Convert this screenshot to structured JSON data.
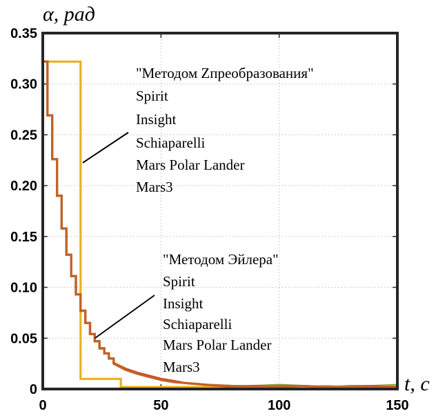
{
  "chart_data": {
    "type": "line",
    "ylabel": "α, рад",
    "xlabel": "t, c",
    "xlim": [
      0,
      150
    ],
    "ylim": [
      0,
      0.35
    ],
    "x_ticks": [
      "0",
      "50",
      "100",
      "150"
    ],
    "y_ticks": [
      "0",
      "0.05",
      "0.10",
      "0.15",
      "0.20",
      "0.25",
      "0.30",
      "0.35"
    ],
    "grid": true,
    "step": true,
    "annotations": [
      {
        "name": "z-group",
        "lines": [
          "\"Методом Zпреобразования\"",
          "Spirit",
          "Insight",
          "Schiaparelli",
          "Mars Polar Lander",
          "Mars3"
        ]
      },
      {
        "name": "euler-group",
        "lines": [
          "\"Методом Эйлера\"",
          "Spirit",
          "Insight",
          "Schiaparelli",
          "Mars Polar Lander",
          "Mars3"
        ]
      }
    ],
    "series": [
      {
        "color": "#e8b21e",
        "x": [
          0,
          16,
          16,
          33,
          33,
          150
        ],
        "y": [
          0.322,
          0.322,
          0.01,
          0.01,
          0.002,
          0.002
        ]
      },
      {
        "color": "#7fa23a",
        "x": [
          0,
          2,
          2,
          4,
          4,
          6,
          6,
          8,
          8,
          10,
          10,
          12,
          12,
          14,
          14,
          16,
          16,
          18,
          18,
          20,
          20,
          22,
          22,
          24,
          24,
          26,
          26,
          28,
          28,
          30,
          30,
          35,
          40,
          45,
          50,
          55,
          60,
          65,
          70,
          80,
          90,
          100,
          110,
          120,
          130,
          140,
          150
        ],
        "y": [
          0.322,
          0.322,
          0.269,
          0.269,
          0.226,
          0.226,
          0.19,
          0.19,
          0.158,
          0.158,
          0.132,
          0.132,
          0.111,
          0.111,
          0.093,
          0.093,
          0.077,
          0.077,
          0.065,
          0.065,
          0.054,
          0.054,
          0.047,
          0.047,
          0.04,
          0.04,
          0.035,
          0.035,
          0.03,
          0.03,
          0.025,
          0.019,
          0.015,
          0.012,
          0.009,
          0.007,
          0.006,
          0.005,
          0.004,
          0.003,
          0.003,
          0.004,
          0.003,
          0.002,
          0.003,
          0.003,
          0.004
        ]
      },
      {
        "color": "#c9b03a",
        "x": [
          0,
          2,
          2,
          4,
          4,
          6,
          6,
          8,
          8,
          10,
          10,
          12,
          12,
          14,
          14,
          16,
          16,
          18,
          18,
          20,
          20,
          22,
          22,
          24,
          24,
          26,
          26,
          28,
          28,
          30,
          30,
          35,
          40,
          45,
          50,
          55,
          60,
          65,
          70,
          80,
          90,
          100,
          110,
          120,
          130,
          140,
          150
        ],
        "y": [
          0.322,
          0.322,
          0.269,
          0.269,
          0.226,
          0.226,
          0.19,
          0.19,
          0.158,
          0.158,
          0.132,
          0.132,
          0.111,
          0.111,
          0.093,
          0.093,
          0.077,
          0.077,
          0.065,
          0.065,
          0.054,
          0.054,
          0.047,
          0.047,
          0.04,
          0.04,
          0.035,
          0.035,
          0.03,
          0.03,
          0.026,
          0.02,
          0.015,
          0.012,
          0.01,
          0.008,
          0.006,
          0.005,
          0.004,
          0.003,
          0.002,
          0.003,
          0.002,
          0.003,
          0.002,
          0.003,
          0.003
        ]
      },
      {
        "color": "#d4462a",
        "x": [
          0,
          2,
          2,
          4,
          4,
          6,
          6,
          8,
          8,
          10,
          10,
          12,
          12,
          14,
          14,
          16,
          16,
          18,
          18,
          20,
          20,
          22,
          22,
          24,
          24,
          26,
          26,
          28,
          28,
          30,
          30,
          35,
          40,
          45,
          50,
          55,
          60,
          65,
          70,
          80,
          90,
          100,
          110,
          120,
          130,
          140,
          150
        ],
        "y": [
          0.322,
          0.322,
          0.269,
          0.269,
          0.226,
          0.226,
          0.19,
          0.19,
          0.158,
          0.158,
          0.132,
          0.132,
          0.111,
          0.111,
          0.093,
          0.093,
          0.077,
          0.077,
          0.065,
          0.065,
          0.054,
          0.054,
          0.047,
          0.047,
          0.04,
          0.04,
          0.035,
          0.035,
          0.03,
          0.03,
          0.025,
          0.02,
          0.016,
          0.013,
          0.01,
          0.008,
          0.006,
          0.005,
          0.004,
          0.002,
          0.003,
          0.002,
          0.003,
          0.002,
          0.002,
          0.003,
          0.002
        ]
      },
      {
        "color": "#c0632a",
        "x": [
          0,
          2,
          2,
          4,
          4,
          6,
          6,
          8,
          8,
          10,
          10,
          12,
          12,
          14,
          14,
          16,
          16,
          18,
          18,
          20,
          20,
          22,
          22,
          24,
          24,
          26,
          26,
          28,
          28,
          30,
          30,
          35,
          40,
          45,
          50,
          55,
          60,
          65,
          70,
          80,
          90,
          100,
          110,
          120,
          130,
          140,
          150
        ],
        "y": [
          0.322,
          0.322,
          0.269,
          0.269,
          0.226,
          0.226,
          0.19,
          0.19,
          0.158,
          0.158,
          0.132,
          0.132,
          0.111,
          0.111,
          0.093,
          0.093,
          0.077,
          0.077,
          0.065,
          0.065,
          0.054,
          0.054,
          0.047,
          0.047,
          0.04,
          0.04,
          0.035,
          0.035,
          0.03,
          0.03,
          0.025,
          0.019,
          0.015,
          0.012,
          0.009,
          0.007,
          0.006,
          0.005,
          0.004,
          0.003,
          0.002,
          0.003,
          0.003,
          0.002,
          0.002,
          0.002,
          0.002
        ]
      }
    ]
  }
}
